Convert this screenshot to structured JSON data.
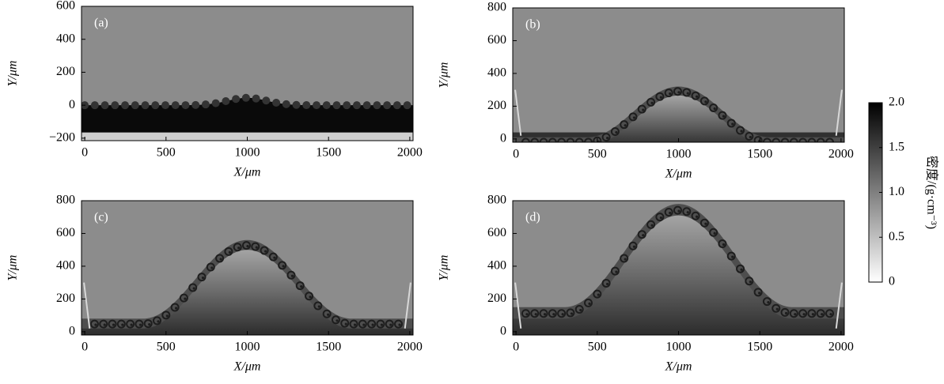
{
  "chart_data": [
    {
      "type": "heatmap",
      "panel_label": "(a)",
      "xlabel": "X/μm",
      "ylabel": "Y/μm",
      "xlim": [
        -20,
        2020
      ],
      "ylim": [
        -215,
        600
      ],
      "xticks": [
        0,
        500,
        1000,
        1500,
        2000
      ],
      "yticks": [
        {
          "value": -200,
          "label": "−200"
        },
        0,
        200,
        400,
        600
      ]
    },
    {
      "type": "heatmap",
      "panel_label": "(b)",
      "xlabel": "X/μm",
      "ylabel": "Y/μm",
      "xlim": [
        -20,
        2020
      ],
      "ylim": [
        -20,
        800
      ],
      "xticks": [
        0,
        500,
        1000,
        1500,
        2000
      ],
      "yticks": [
        0,
        200,
        400,
        600,
        800
      ]
    },
    {
      "type": "heatmap",
      "panel_label": "(c)",
      "xlabel": "X/μm",
      "ylabel": "Y/μm",
      "xlim": [
        -20,
        2020
      ],
      "ylim": [
        -20,
        800
      ],
      "xticks": [
        0,
        500,
        1000,
        1500,
        2000
      ],
      "yticks": [
        0,
        200,
        400,
        600,
        800
      ]
    },
    {
      "type": "heatmap",
      "panel_label": "(d)",
      "xlabel": "X/μm",
      "ylabel": "Y/μm",
      "xlim": [
        -20,
        2020
      ],
      "ylim": [
        -20,
        800
      ],
      "xticks": [
        0,
        500,
        1000,
        1500,
        2000
      ],
      "yticks": [
        0,
        200,
        400,
        600,
        800
      ]
    },
    {
      "type": "colorbar",
      "label": "密度/(g·cm⁻³)",
      "lim": [
        0,
        2
      ],
      "ticks": [
        0,
        0.5,
        {
          "value": 1,
          "label": "1.0"
        },
        1.5,
        {
          "value": 2,
          "label": "2.0"
        }
      ]
    }
  ]
}
